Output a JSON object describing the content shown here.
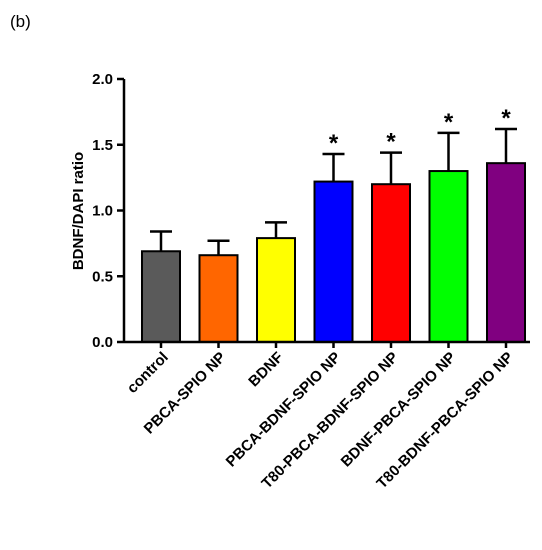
{
  "panel_label": "(b)",
  "chart_data": {
    "type": "bar",
    "title": "",
    "xlabel": "",
    "ylabel": "BDNF/DAPI ratio",
    "ylim": [
      0,
      2.0
    ],
    "yticks": [
      "0.0",
      "0.5",
      "1.0",
      "1.5",
      "2.0"
    ],
    "grid": false,
    "categories": [
      "control",
      "PBCA-SPIO NP",
      "BDNF",
      "PBCA-BDNF-SPIO NP",
      "T80-PBCA-BDNF-SPIO NP",
      "BDNF-PBCA-SPIO NP",
      "T80-BDNF-PBCA-SPIO NP"
    ],
    "values": [
      0.69,
      0.66,
      0.79,
      1.22,
      1.2,
      1.3,
      1.36
    ],
    "errors": [
      0.15,
      0.11,
      0.12,
      0.21,
      0.24,
      0.29,
      0.26
    ],
    "significance": [
      "",
      "",
      "",
      "*",
      "*",
      "*",
      "*"
    ],
    "colors": [
      "#5a5a5a",
      "#ff6600",
      "#ffff00",
      "#0000ff",
      "#ff0000",
      "#00ff00",
      "#800080"
    ]
  }
}
